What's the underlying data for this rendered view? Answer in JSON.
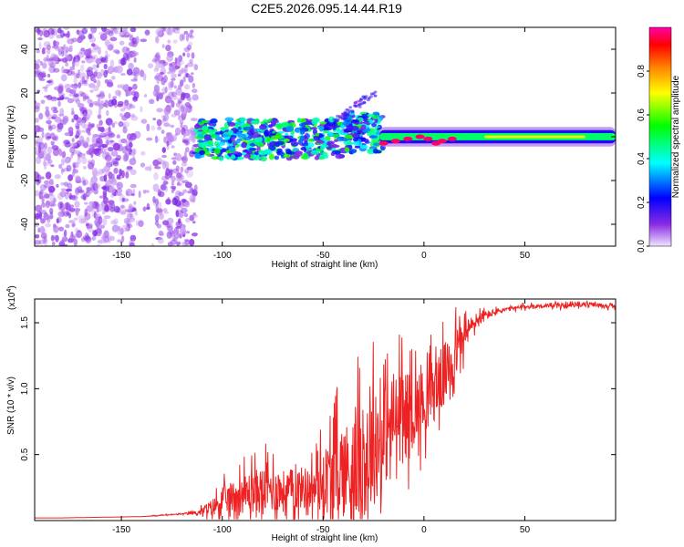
{
  "title": "C2E5.2026.095.14.44.R19",
  "chart_data": [
    {
      "type": "heatmap",
      "panel": "spectrogram",
      "xlabel": "Height of straight line (km)",
      "ylabel": "Frequency (Hz)",
      "xlim": [
        -193,
        95
      ],
      "ylim": [
        -50,
        50
      ],
      "xticks": [
        -150,
        -100,
        -50,
        0,
        50
      ],
      "xtick_labels": [
        "-150",
        "-100",
        "-50",
        "0",
        "50"
      ],
      "yticks": [
        -40,
        -20,
        0,
        20,
        40
      ],
      "ytick_labels": [
        "-40",
        "-20",
        "0",
        "20",
        "40"
      ],
      "colorbar": {
        "label": "Normalized spectral amplitude",
        "range": [
          0,
          1
        ],
        "ticks": [
          0.0,
          0.2,
          0.4,
          0.6,
          0.8
        ],
        "tick_labels": [
          "0.0",
          "0.2",
          "0.4",
          "0.6",
          "0.8"
        ],
        "colormap": [
          "#f0e4ff",
          "#8a2be2",
          "#0000ff",
          "#00ffff",
          "#00ff00",
          "#ffff00",
          "#ff8000",
          "#ff0000",
          "#ff00aa"
        ]
      },
      "regions": [
        {
          "name": "noise",
          "x_range": [
            -193,
            -113
          ],
          "f_range": [
            -50,
            50
          ],
          "amplitude": 0.12
        },
        {
          "name": "scattered-band",
          "x_range": [
            -113,
            -20
          ],
          "f_range": [
            -10,
            8
          ],
          "amplitude": 0.3
        },
        {
          "name": "coherent-band",
          "x_range": [
            -22,
            95
          ],
          "f_center": 0,
          "f_halfwidth": 3,
          "amplitude": 0.45,
          "peak_amplitude": 0.95
        }
      ]
    },
    {
      "type": "line",
      "panel": "snr",
      "xlabel": "Height of straight line (km)",
      "ylabel": "SNR (10 * v/v)",
      "y_multiplier": "(x10",
      "y_multiplier_exp": "4",
      "y_multiplier_close": ")",
      "xlim": [
        -193,
        95
      ],
      "ylim": [
        0,
        1.68
      ],
      "xticks": [
        -150,
        -100,
        -50,
        0,
        50
      ],
      "xtick_labels": [
        "-150",
        "-100",
        "-50",
        "0",
        "50"
      ],
      "yticks": [
        0.5,
        1.0,
        1.5
      ],
      "ytick_labels": [
        "0.5",
        "1.0",
        "1.5"
      ],
      "line_color": "#ee2222",
      "series": [
        {
          "name": "SNR",
          "x": [
            -193,
            -180,
            -160,
            -140,
            -130,
            -120,
            -112,
            -105,
            -100,
            -95,
            -90,
            -85,
            -80,
            -75,
            -70,
            -65,
            -60,
            -55,
            -50,
            -45,
            -40,
            -35,
            -30,
            -25,
            -20,
            -15,
            -10,
            -5,
            0,
            5,
            10,
            15,
            20,
            25,
            30,
            35,
            40,
            45,
            50,
            60,
            70,
            80,
            90,
            95
          ],
          "y": [
            0.02,
            0.02,
            0.025,
            0.03,
            0.04,
            0.05,
            0.06,
            0.1,
            0.15,
            0.18,
            0.2,
            0.22,
            0.23,
            0.24,
            0.22,
            0.24,
            0.25,
            0.24,
            0.3,
            0.35,
            0.38,
            0.4,
            0.45,
            0.55,
            0.65,
            0.75,
            0.8,
            0.85,
            0.9,
            1.0,
            1.1,
            1.25,
            1.4,
            1.5,
            1.55,
            1.58,
            1.6,
            1.61,
            1.62,
            1.63,
            1.63,
            1.64,
            1.63,
            1.62
          ],
          "noise_amplitude": [
            0.0,
            0.0,
            0.0,
            0.0,
            0.005,
            0.005,
            0.02,
            0.08,
            0.12,
            0.15,
            0.18,
            0.2,
            0.22,
            0.22,
            0.2,
            0.2,
            0.2,
            0.2,
            0.3,
            0.4,
            0.45,
            0.5,
            0.55,
            0.55,
            0.5,
            0.45,
            0.4,
            0.35,
            0.3,
            0.3,
            0.3,
            0.25,
            0.15,
            0.08,
            0.05,
            0.03,
            0.02,
            0.02,
            0.02,
            0.02,
            0.02,
            0.02,
            0.02,
            0.02
          ]
        }
      ]
    }
  ]
}
